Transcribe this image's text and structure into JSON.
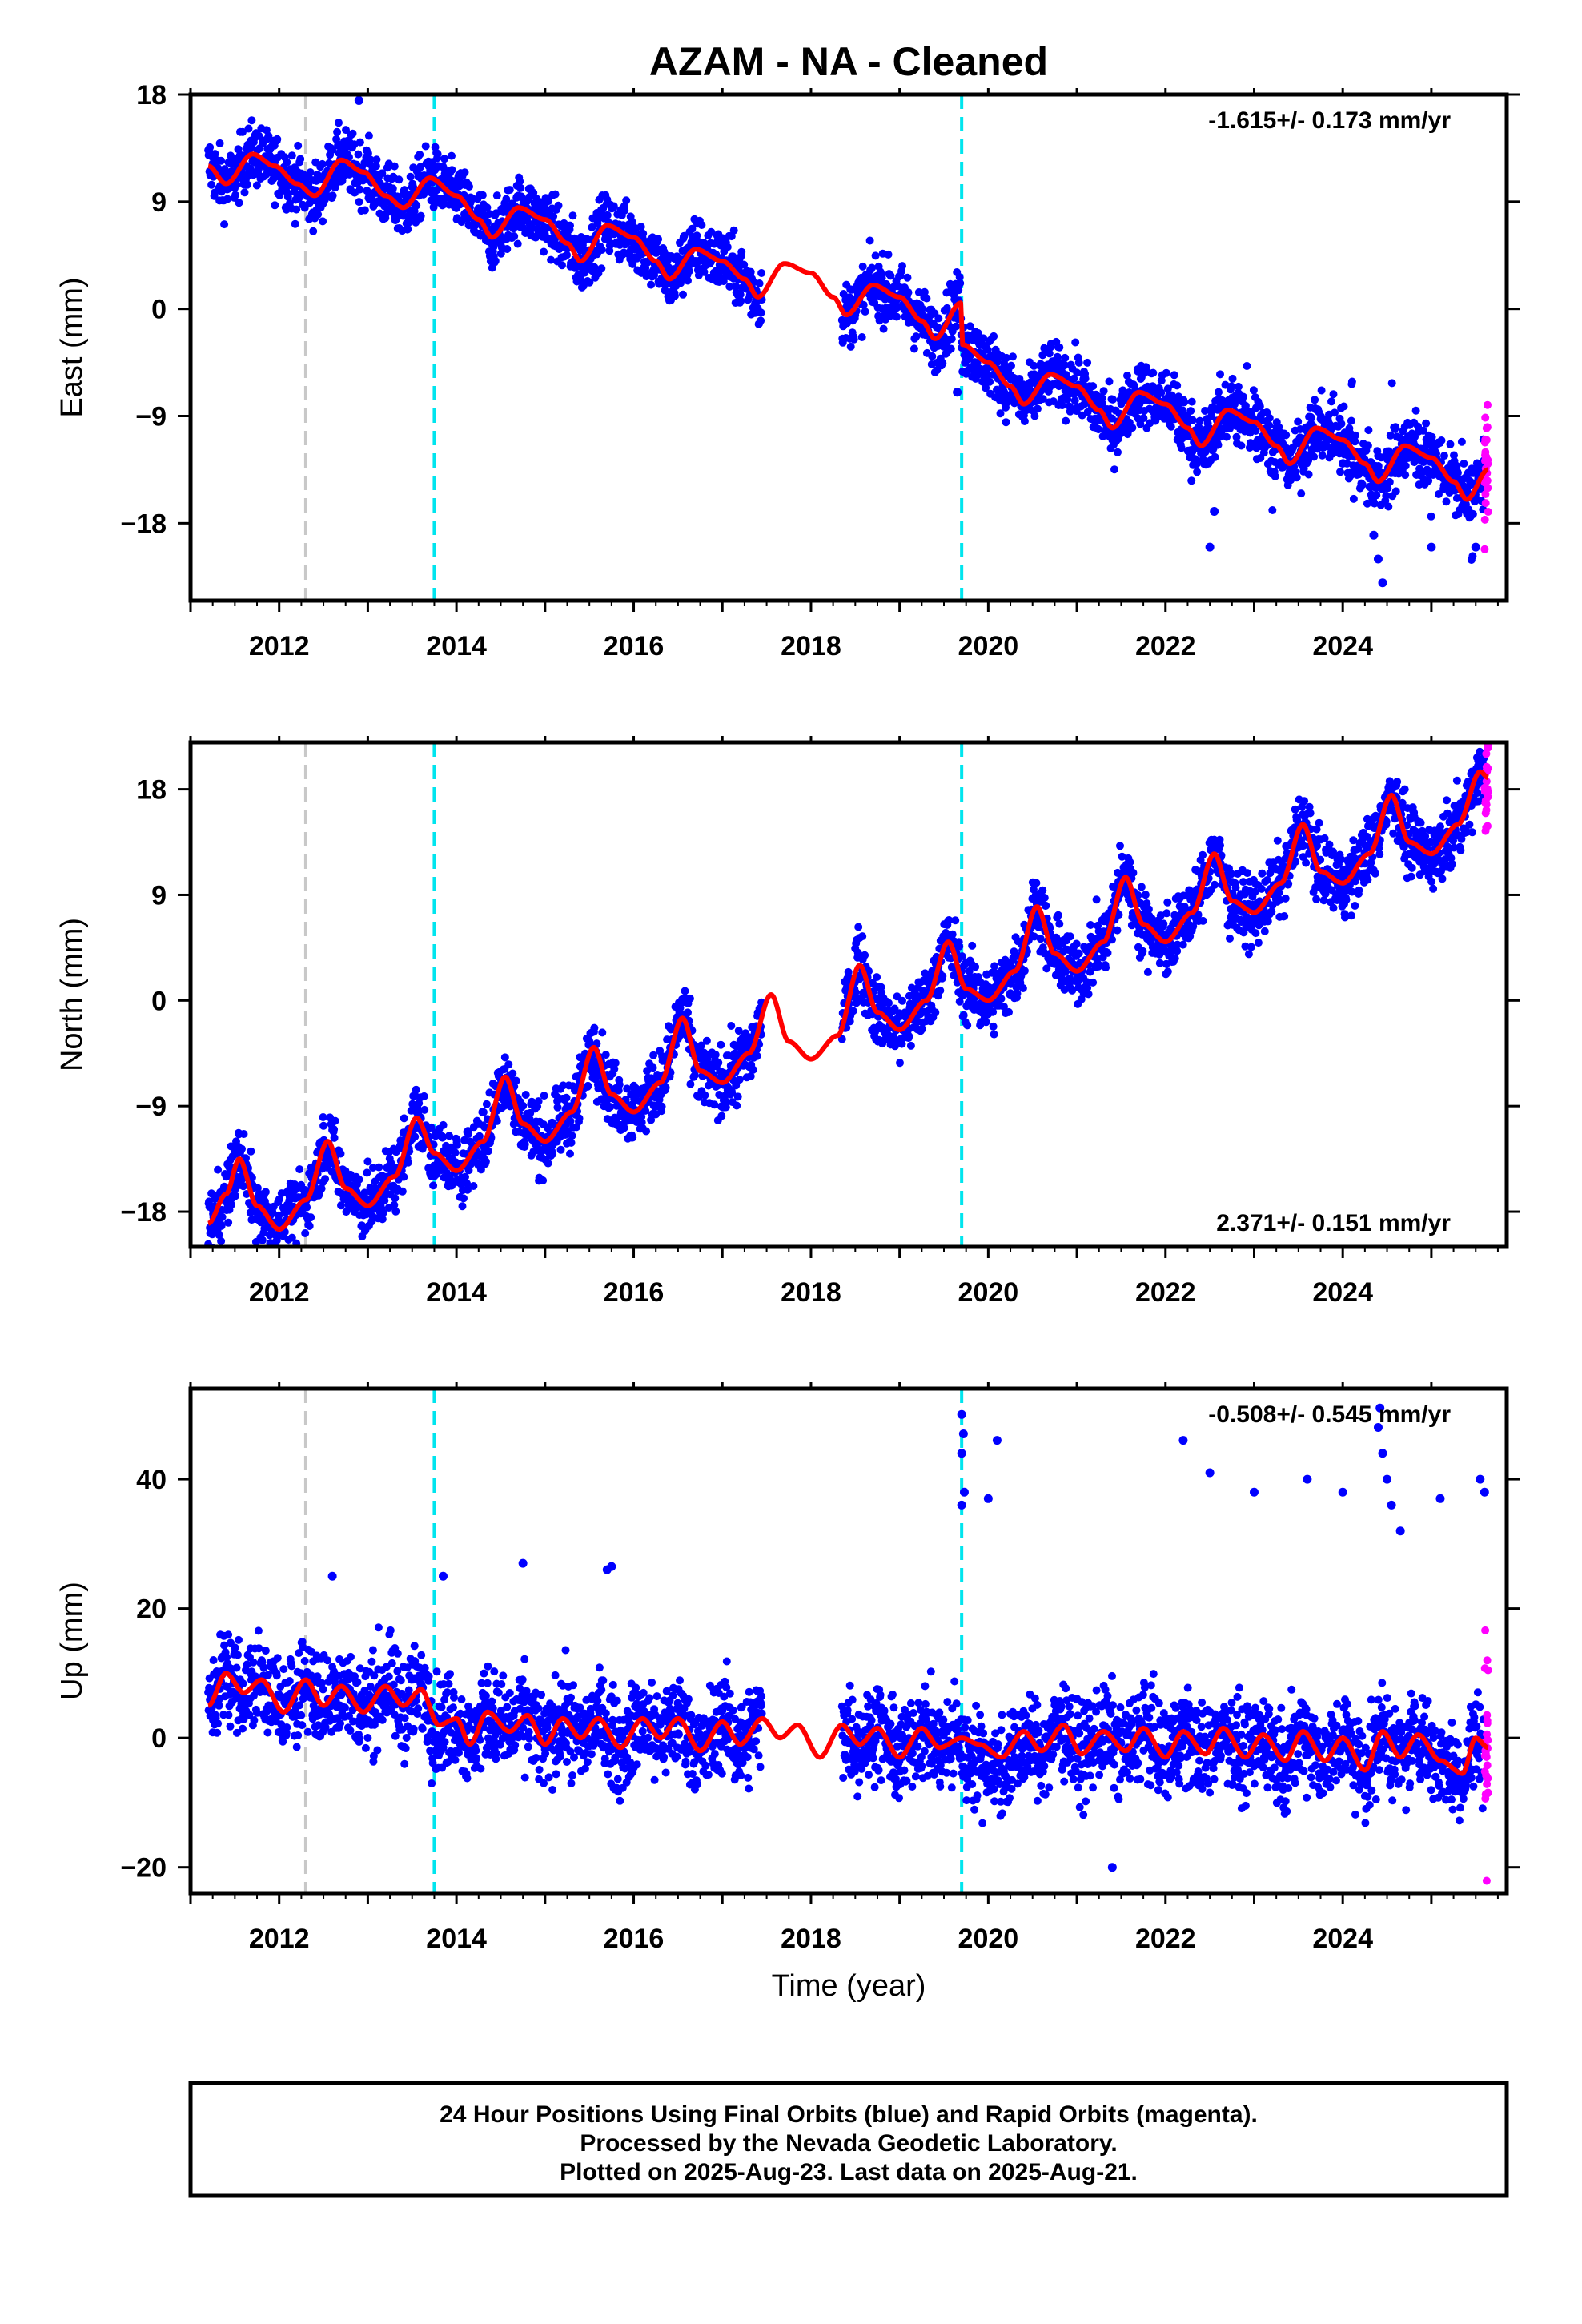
{
  "chart_data": {
    "type": "scatter",
    "title": "AZAM  - NA - Cleaned",
    "xlabel": "Time (year)",
    "xlim": [
      2011.0,
      2025.85
    ],
    "x_ticks": [
      "2012",
      "2014",
      "2016",
      "2018",
      "2020",
      "2022",
      "2024"
    ],
    "colors": {
      "final_orbits": "#0000ff",
      "rapid_orbits": "#ff00ff",
      "model": "#ff0000",
      "antenna_change": "#00e5ee",
      "other_event": "#c8c8c8"
    },
    "event_lines": [
      {
        "x": 2012.3,
        "color": "gray"
      },
      {
        "x": 2013.75,
        "color": "cyan"
      },
      {
        "x": 2019.7,
        "color": "cyan"
      }
    ],
    "data_gap": [
      2017.45,
      2018.35
    ],
    "rapid_start": 2025.6,
    "last_data": 2025.64,
    "panels": [
      {
        "name": "East",
        "ylabel": "East (mm)",
        "ylim": [
          -24.5,
          18
        ],
        "y_ticks": [
          "18",
          "9",
          "0",
          "-9",
          "-18"
        ],
        "rate_text": "-1.615+/- 0.173 mm/yr",
        "rate_position": "top-right",
        "model_points": [
          [
            2011.2,
            12
          ],
          [
            2011.4,
            10.5
          ],
          [
            2011.7,
            13
          ],
          [
            2011.95,
            12
          ],
          [
            2012.2,
            10.5
          ],
          [
            2012.4,
            9.5
          ],
          [
            2012.7,
            12.5
          ],
          [
            2012.95,
            11.5
          ],
          [
            2013.2,
            9.5
          ],
          [
            2013.4,
            8.5
          ],
          [
            2013.7,
            11
          ],
          [
            2014.0,
            9.5
          ],
          [
            2014.25,
            7.5
          ],
          [
            2014.4,
            6
          ],
          [
            2014.7,
            8.5
          ],
          [
            2015.0,
            7.5
          ],
          [
            2015.25,
            5.5
          ],
          [
            2015.4,
            4
          ],
          [
            2015.7,
            7
          ],
          [
            2016.0,
            6
          ],
          [
            2016.25,
            4
          ],
          [
            2016.4,
            2.5
          ],
          [
            2016.7,
            5
          ],
          [
            2017.0,
            4
          ],
          [
            2017.25,
            2.5
          ],
          [
            2017.4,
            1
          ],
          [
            2017.7,
            3.8
          ],
          [
            2018.0,
            3
          ],
          [
            2018.25,
            1
          ],
          [
            2018.4,
            -0.5
          ],
          [
            2018.7,
            2
          ],
          [
            2019.0,
            1
          ],
          [
            2019.25,
            -1
          ],
          [
            2019.4,
            -2.5
          ],
          [
            2019.69,
            0.5
          ],
          [
            2019.71,
            -3
          ],
          [
            2020.0,
            -4.5
          ],
          [
            2020.25,
            -6.5
          ],
          [
            2020.4,
            -8
          ],
          [
            2020.7,
            -5.5
          ],
          [
            2021.0,
            -6.5
          ],
          [
            2021.25,
            -8.5
          ],
          [
            2021.4,
            -10
          ],
          [
            2021.7,
            -7
          ],
          [
            2022.0,
            -8
          ],
          [
            2022.25,
            -10
          ],
          [
            2022.4,
            -11.5
          ],
          [
            2022.7,
            -8.5
          ],
          [
            2023.0,
            -9.5
          ],
          [
            2023.25,
            -11.5
          ],
          [
            2023.4,
            -13
          ],
          [
            2023.7,
            -10
          ],
          [
            2024.0,
            -11
          ],
          [
            2024.25,
            -13
          ],
          [
            2024.4,
            -14.5
          ],
          [
            2024.7,
            -11.5
          ],
          [
            2025.0,
            -12.5
          ],
          [
            2025.25,
            -14.5
          ],
          [
            2025.4,
            -16
          ],
          [
            2025.64,
            -13.5
          ]
        ]
      },
      {
        "name": "North",
        "ylabel": "North (mm)",
        "ylim": [
          -21,
          22
        ],
        "y_ticks": [
          "18",
          "9",
          "0",
          "-9",
          "-18"
        ],
        "rate_text": "2.371+/- 0.151 mm/yr",
        "rate_position": "bottom-right",
        "model_points": [
          [
            2011.2,
            -19
          ],
          [
            2011.4,
            -16.5
          ],
          [
            2011.55,
            -13.5
          ],
          [
            2011.75,
            -17.5
          ],
          [
            2012.0,
            -19.5
          ],
          [
            2012.3,
            -17
          ],
          [
            2012.55,
            -12
          ],
          [
            2012.75,
            -16
          ],
          [
            2013.0,
            -17.5
          ],
          [
            2013.3,
            -15
          ],
          [
            2013.55,
            -10
          ],
          [
            2013.75,
            -13
          ],
          [
            2014.0,
            -14.5
          ],
          [
            2014.3,
            -12
          ],
          [
            2014.55,
            -6.5
          ],
          [
            2014.75,
            -10.5
          ],
          [
            2015.0,
            -12
          ],
          [
            2015.3,
            -9.5
          ],
          [
            2015.55,
            -4
          ],
          [
            2015.75,
            -8
          ],
          [
            2016.0,
            -9.5
          ],
          [
            2016.3,
            -7
          ],
          [
            2016.55,
            -1.5
          ],
          [
            2016.75,
            -6
          ],
          [
            2017.0,
            -7
          ],
          [
            2017.3,
            -4.5
          ],
          [
            2017.55,
            0.5
          ],
          [
            2017.75,
            -3.5
          ],
          [
            2018.0,
            -5
          ],
          [
            2018.3,
            -3
          ],
          [
            2018.55,
            3
          ],
          [
            2018.75,
            -1
          ],
          [
            2019.0,
            -2.5
          ],
          [
            2019.3,
            0
          ],
          [
            2019.55,
            5
          ],
          [
            2019.75,
            1
          ],
          [
            2020.0,
            0
          ],
          [
            2020.3,
            2.5
          ],
          [
            2020.55,
            8
          ],
          [
            2020.75,
            4
          ],
          [
            2021.0,
            2.5
          ],
          [
            2021.3,
            5
          ],
          [
            2021.55,
            10.5
          ],
          [
            2021.75,
            6.5
          ],
          [
            2022.0,
            5
          ],
          [
            2022.3,
            7.5
          ],
          [
            2022.55,
            12.5
          ],
          [
            2022.75,
            8.5
          ],
          [
            2023.0,
            7.5
          ],
          [
            2023.3,
            10
          ],
          [
            2023.55,
            15
          ],
          [
            2023.75,
            11
          ],
          [
            2024.0,
            10
          ],
          [
            2024.3,
            12.5
          ],
          [
            2024.55,
            17.5
          ],
          [
            2024.75,
            13.5
          ],
          [
            2025.0,
            12.5
          ],
          [
            2025.3,
            15
          ],
          [
            2025.55,
            19.5
          ],
          [
            2025.64,
            19
          ]
        ]
      },
      {
        "name": "Up",
        "ylabel": "Up (mm)",
        "ylim": [
          -24,
          54
        ],
        "y_ticks": [
          "40",
          "20",
          "0",
          "-20"
        ],
        "rate_text": "-0.508+/- 0.545 mm/yr",
        "rate_position": "top-right",
        "model_points": [
          [
            2011.2,
            5
          ],
          [
            2011.4,
            10
          ],
          [
            2011.6,
            7
          ],
          [
            2011.8,
            9
          ],
          [
            2012.05,
            4
          ],
          [
            2012.3,
            9
          ],
          [
            2012.5,
            5
          ],
          [
            2012.7,
            8
          ],
          [
            2012.95,
            4
          ],
          [
            2013.2,
            8
          ],
          [
            2013.4,
            5
          ],
          [
            2013.6,
            7.5
          ],
          [
            2013.8,
            2
          ],
          [
            2014.0,
            3
          ],
          [
            2014.15,
            -1
          ],
          [
            2014.35,
            4
          ],
          [
            2014.6,
            1
          ],
          [
            2014.8,
            3.5
          ],
          [
            2015.0,
            -1
          ],
          [
            2015.2,
            3
          ],
          [
            2015.4,
            0
          ],
          [
            2015.6,
            3
          ],
          [
            2015.85,
            -1.5
          ],
          [
            2016.1,
            3
          ],
          [
            2016.3,
            0
          ],
          [
            2016.5,
            3
          ],
          [
            2016.75,
            -2
          ],
          [
            2017.0,
            2.5
          ],
          [
            2017.2,
            -1
          ],
          [
            2017.45,
            3
          ],
          [
            2017.65,
            0
          ],
          [
            2017.85,
            2
          ],
          [
            2018.1,
            -3
          ],
          [
            2018.35,
            2
          ],
          [
            2018.55,
            -1
          ],
          [
            2018.75,
            1.5
          ],
          [
            2019.0,
            -3
          ],
          [
            2019.25,
            1.5
          ],
          [
            2019.45,
            -1.5
          ],
          [
            2019.7,
            0
          ],
          [
            2019.9,
            -1
          ],
          [
            2020.15,
            -3
          ],
          [
            2020.4,
            1
          ],
          [
            2020.6,
            -2
          ],
          [
            2020.85,
            2
          ],
          [
            2021.05,
            -2.5
          ],
          [
            2021.3,
            1
          ],
          [
            2021.55,
            -2
          ],
          [
            2021.75,
            1.5
          ],
          [
            2022.0,
            -3
          ],
          [
            2022.2,
            1
          ],
          [
            2022.45,
            -2.5
          ],
          [
            2022.65,
            1.5
          ],
          [
            2022.9,
            -3
          ],
          [
            2023.1,
            0.5
          ],
          [
            2023.35,
            -3.5
          ],
          [
            2023.55,
            1
          ],
          [
            2023.8,
            -3.5
          ],
          [
            2024.0,
            0
          ],
          [
            2024.25,
            -5
          ],
          [
            2024.45,
            1
          ],
          [
            2024.65,
            -3
          ],
          [
            2024.85,
            0.5
          ],
          [
            2025.1,
            -3.5
          ],
          [
            2025.35,
            -5.5
          ],
          [
            2025.5,
            0
          ],
          [
            2025.64,
            -1.5
          ]
        ]
      }
    ],
    "outlier_points": [
      {
        "panel": "East",
        "points": [
          [
            2012.9,
            17.5
          ],
          [
            2019.65,
            -7
          ],
          [
            2022.55,
            -17
          ],
          [
            2022.5,
            -20
          ],
          [
            2024.35,
            -19
          ],
          [
            2024.4,
            -21
          ],
          [
            2024.45,
            -23
          ],
          [
            2025.0,
            -20
          ],
          [
            2025.5,
            -20
          ]
        ]
      },
      {
        "panel": "Up",
        "points": [
          [
            2019.7,
            50
          ],
          [
            2019.72,
            47
          ],
          [
            2019.7,
            44
          ],
          [
            2019.73,
            38
          ],
          [
            2019.7,
            36
          ],
          [
            2020.1,
            46
          ],
          [
            2020.0,
            37
          ],
          [
            2022.2,
            46
          ],
          [
            2022.5,
            41
          ],
          [
            2023.0,
            38
          ],
          [
            2023.6,
            40
          ],
          [
            2024.0,
            38
          ],
          [
            2024.4,
            48
          ],
          [
            2024.45,
            44
          ],
          [
            2024.5,
            40
          ],
          [
            2024.42,
            51
          ],
          [
            2024.55,
            36
          ],
          [
            2024.65,
            32
          ],
          [
            2025.1,
            37
          ],
          [
            2025.55,
            40
          ],
          [
            2025.6,
            38
          ],
          [
            2014.75,
            27
          ],
          [
            2015.7,
            26
          ],
          [
            2015.75,
            26.5
          ],
          [
            2012.6,
            25
          ],
          [
            2013.85,
            25
          ],
          [
            2021.4,
            -20
          ]
        ]
      },
      {
        "panel": "North",
        "points": []
      }
    ],
    "footnote": [
      "24 Hour Positions Using Final Orbits (blue) and Rapid Orbits (magenta).",
      "Processed by the Nevada Geodetic Laboratory.",
      "Plotted on 2025-Aug-23. Last data on 2025-Aug-21."
    ]
  }
}
